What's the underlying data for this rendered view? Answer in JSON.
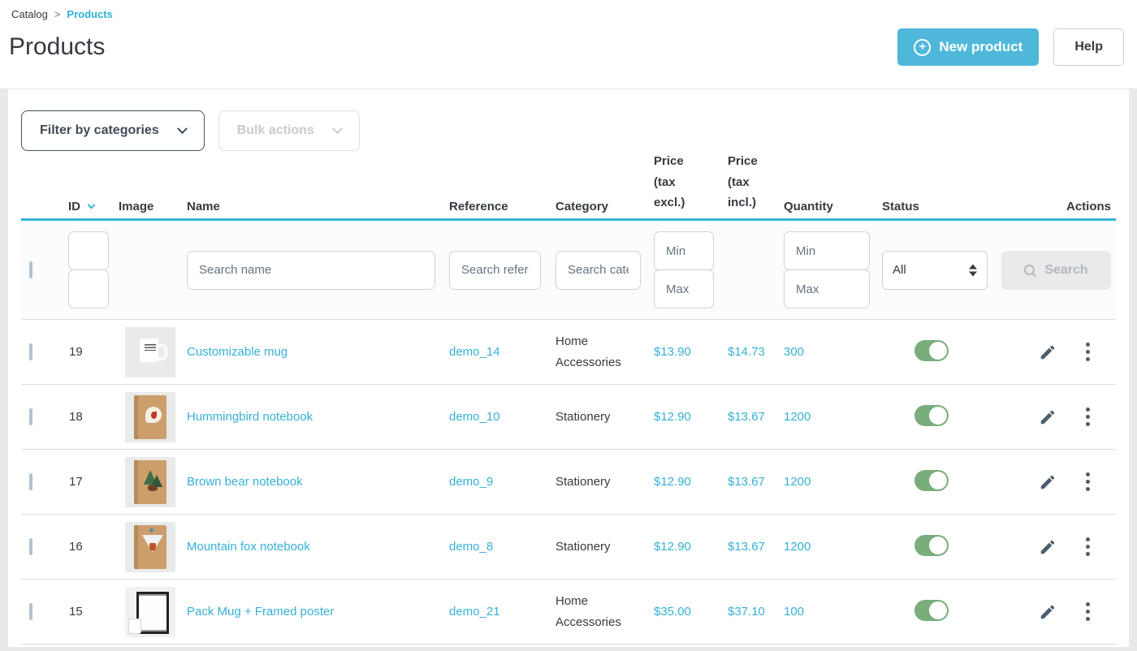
{
  "breadcrumb": {
    "parent": "Catalog",
    "separator": ">",
    "current": "Products"
  },
  "header": {
    "title": "Products",
    "new_product_label": "New product",
    "help_label": "Help"
  },
  "toolbar": {
    "filter_by_categories_label": "Filter by categories",
    "bulk_actions_label": "Bulk actions"
  },
  "icons": {
    "new_product": "plus-circle-icon",
    "filter_dropdown": "chevron-down-icon",
    "bulk_dropdown": "chevron-down-icon",
    "id_sort": "chevron-down-icon",
    "status_select": "up-down-arrows-icon",
    "search": "magnifier-icon",
    "edit": "pencil-icon",
    "row_menu": "kebab-vertical-icon"
  },
  "colors": {
    "accent_blue": "#36b0d5",
    "button_blue": "#4fb8da",
    "toggle_green": "#79ae7c",
    "header_underline": "#36b4d9",
    "disabled_gray": "#e9eaeb"
  },
  "table": {
    "columns": [
      "ID",
      "Image",
      "Name",
      "Reference",
      "Category",
      "Price (tax excl.)",
      "Price (tax incl.)",
      "Quantity",
      "Status",
      "Actions"
    ],
    "filters": {
      "name_placeholder": "Search name",
      "reference_placeholder": "Search reference",
      "category_placeholder": "Search category",
      "price_min_placeholder": "Min",
      "price_max_placeholder": "Max",
      "quantity_min_placeholder": "Min",
      "quantity_max_placeholder": "Max",
      "status_selected_option": "All",
      "search_button_label": "Search"
    },
    "rows": [
      {
        "id": "19",
        "image": "mug",
        "name": "Customizable mug",
        "reference": "demo_14",
        "category": "Home Accessories",
        "price_tax_excl": "$13.90",
        "price_tax_incl": "$14.73",
        "quantity": "300",
        "status": "enabled"
      },
      {
        "id": "18",
        "image": "notebook-hummingbird",
        "name": "Hummingbird notebook",
        "reference": "demo_10",
        "category": "Stationery",
        "price_tax_excl": "$12.90",
        "price_tax_incl": "$13.67",
        "quantity": "1200",
        "status": "enabled"
      },
      {
        "id": "17",
        "image": "notebook-bear",
        "name": "Brown bear notebook",
        "reference": "demo_9",
        "category": "Stationery",
        "price_tax_excl": "$12.90",
        "price_tax_incl": "$13.67",
        "quantity": "1200",
        "status": "enabled"
      },
      {
        "id": "16",
        "image": "notebook-fox",
        "name": "Mountain fox notebook",
        "reference": "demo_8",
        "category": "Stationery",
        "price_tax_excl": "$12.90",
        "price_tax_incl": "$13.67",
        "quantity": "1200",
        "status": "enabled"
      },
      {
        "id": "15",
        "image": "poster",
        "name": "Pack Mug + Framed poster",
        "reference": "demo_21",
        "category": "Home Accessories",
        "price_tax_excl": "$35.00",
        "price_tax_incl": "$37.10",
        "quantity": "100",
        "status": "enabled"
      }
    ]
  }
}
